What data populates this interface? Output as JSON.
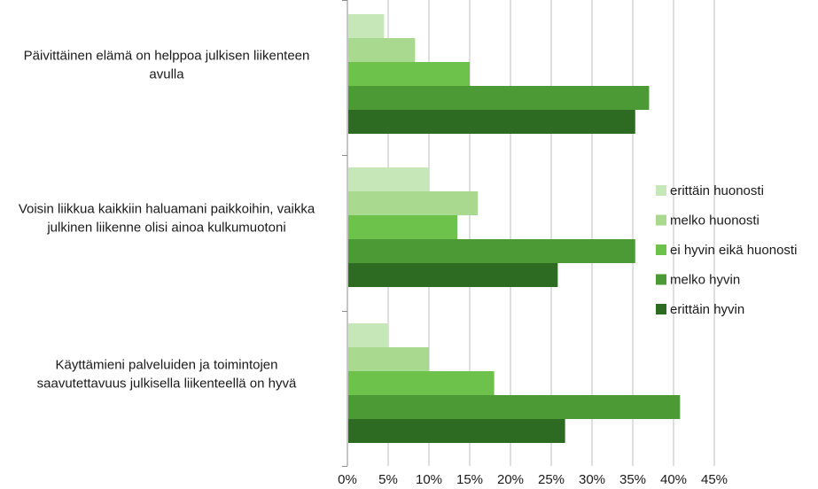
{
  "chart_data": {
    "type": "bar",
    "orientation": "horizontal",
    "categories": [
      [
        "Päivittäinen elämä on helppoa julkisen liikenteen",
        "avulla"
      ],
      [
        "Voisin liikkua kaikkiin haluamani paikkoihin, vaikka",
        "julkinen liikenne olisi ainoa kulkumuotoni"
      ],
      [
        "Käyttämieni palveluiden ja toimintojen",
        "saavutettavuus julkisella liikenteellä on hyvä"
      ]
    ],
    "series": [
      {
        "name": "erittäin huonosti",
        "color": "#c6e8b8",
        "values": [
          4.5,
          10.0,
          5.0
        ]
      },
      {
        "name": "melko huonosti",
        "color": "#a8d98f",
        "values": [
          8.3,
          16.0,
          10.0
        ]
      },
      {
        "name": "ei hyvin eikä huonosti",
        "color": "#6cc24a",
        "values": [
          15.0,
          13.5,
          18.0
        ]
      },
      {
        "name": "melko hyvin",
        "color": "#4c9a35",
        "values": [
          37.0,
          35.3,
          40.8
        ]
      },
      {
        "name": "erittäin hyvin",
        "color": "#2e6b22",
        "values": [
          35.3,
          25.8,
          26.7
        ]
      }
    ],
    "xlim": [
      0,
      45
    ],
    "xticks": [
      "0%",
      "5%",
      "10%",
      "15%",
      "20%",
      "25%",
      "30%",
      "35%",
      "40%",
      "45%"
    ],
    "grid": true,
    "legend_position": "right"
  }
}
